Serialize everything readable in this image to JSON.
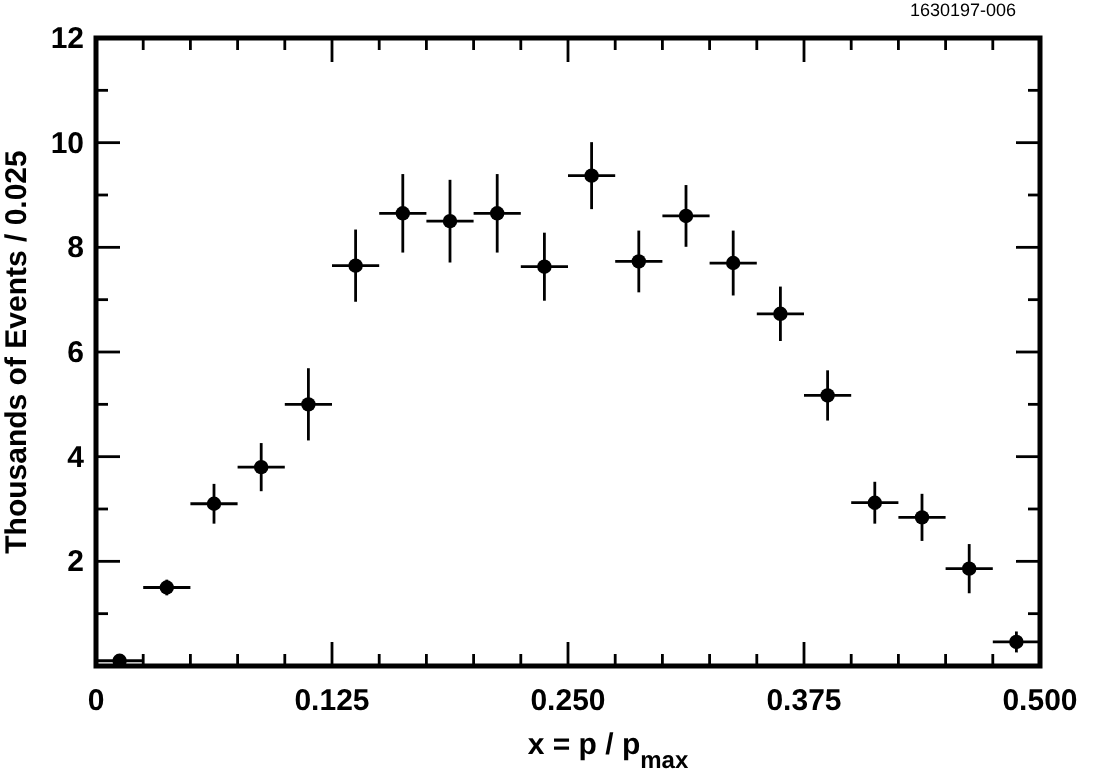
{
  "chart_data": {
    "type": "scatter",
    "xlabel": "x = p / p$_{max}$",
    "ylabel": "Thousands of Events / 0.025",
    "annotations": [
      "1630197-006"
    ],
    "x": [
      0.0125,
      0.0375,
      0.0625,
      0.0875,
      0.1125,
      0.1375,
      0.1625,
      0.1875,
      0.2125,
      0.2375,
      0.2625,
      0.2875,
      0.3125,
      0.3375,
      0.3625,
      0.3875,
      0.4125,
      0.4375,
      0.4625,
      0.4875
    ],
    "values": [
      0.1,
      1.5,
      3.1,
      3.8,
      5.0,
      7.65,
      8.65,
      8.5,
      8.65,
      7.63,
      9.37,
      7.73,
      8.6,
      7.7,
      6.73,
      5.17,
      3.12,
      2.84,
      1.86,
      0.46
    ],
    "errors": [
      0.05,
      0.15,
      0.38,
      0.46,
      0.69,
      0.69,
      0.75,
      0.79,
      0.75,
      0.65,
      0.64,
      0.59,
      0.59,
      0.62,
      0.52,
      0.48,
      0.4,
      0.45,
      0.47,
      0.2
    ],
    "xerrors": [
      0.0125,
      0.0125,
      0.0125,
      0.0125,
      0.0125,
      0.0125,
      0.0125,
      0.0125,
      0.0125,
      0.0125,
      0.0125,
      0.0125,
      0.0125,
      0.0125,
      0.0125,
      0.0125,
      0.0125,
      0.0125,
      0.0125,
      0.0125
    ],
    "color": "#000000",
    "marker": "circle",
    "grid": false,
    "xlim": [
      0,
      0.5
    ],
    "ylim": [
      0,
      12
    ],
    "xticks": [
      0,
      {
        "value": 0.025,
        "label": null
      },
      {
        "value": 0.05,
        "label": null
      },
      {
        "value": 0.075,
        "label": null
      },
      {
        "value": 0.1,
        "label": null
      },
      {
        "value": 0.125,
        "label": "0.125"
      },
      {
        "value": 0.15,
        "label": null
      },
      {
        "value": 0.175,
        "label": null
      },
      {
        "value": 0.2,
        "label": null
      },
      {
        "value": 0.225,
        "label": null
      },
      {
        "value": 0.25,
        "label": "0.250"
      },
      {
        "value": 0.275,
        "label": null
      },
      {
        "value": 0.3,
        "label": null
      },
      {
        "value": 0.325,
        "label": null
      },
      {
        "value": 0.35,
        "label": null
      },
      {
        "value": 0.375,
        "label": "0.375"
      },
      {
        "value": 0.4,
        "label": null
      },
      {
        "value": 0.425,
        "label": null
      },
      {
        "value": 0.45,
        "label": null
      },
      {
        "value": 0.475,
        "label": null
      },
      {
        "value": 0.5,
        "label": "0.500"
      }
    ],
    "yticks": [
      {
        "value": 1,
        "label": null
      },
      2,
      {
        "value": 3,
        "label": null
      },
      4,
      {
        "value": 5,
        "label": null
      },
      6,
      {
        "value": 7,
        "label": null
      },
      8,
      {
        "value": 9,
        "label": null
      },
      10,
      {
        "value": 11,
        "label": null
      },
      12
    ]
  }
}
